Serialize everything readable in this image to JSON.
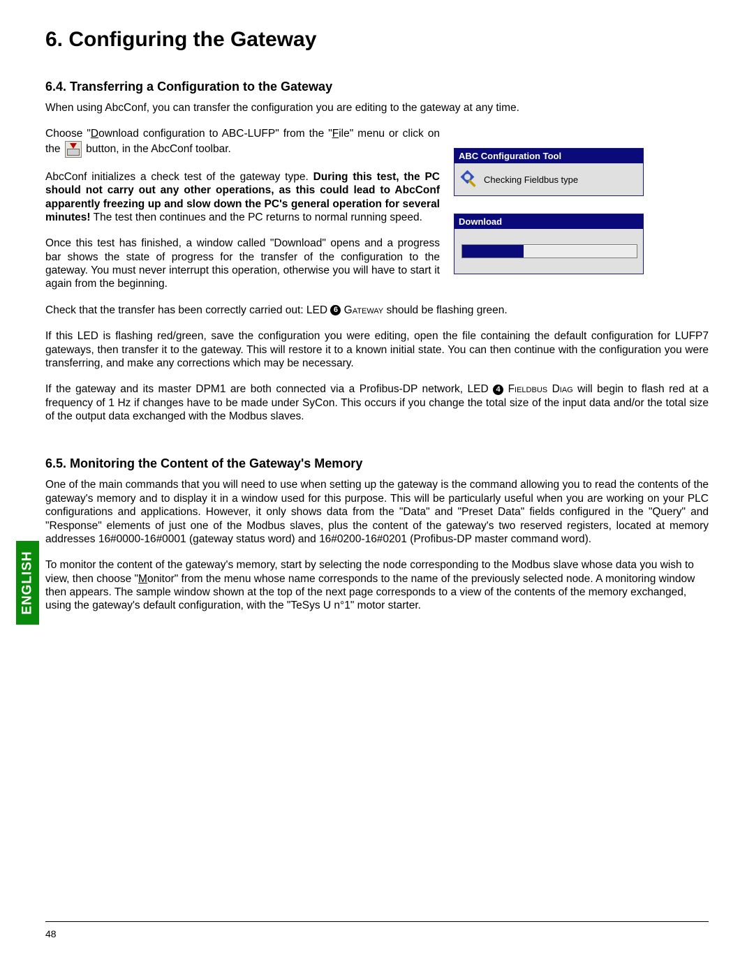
{
  "chapter_title": "6. Configuring the Gateway",
  "section_64_title": "6.4. Transferring a Configuration to the Gateway",
  "p1": "When using AbcConf, you can transfer the configuration you are editing to the gateway at any time.",
  "p2a": "Choose \"",
  "p2_underD": "D",
  "p2b": "ownload configuration to ABC-LUFP\" from the \"",
  "p2_underF": "F",
  "p2c": "ile\" menu or click on the ",
  "p2d": " button, in the AbcConf toolbar.",
  "p3a": "AbcConf initializes a check test of the gateway type. ",
  "p3_bold": "During this test, the PC should not carry out any other operations, as this could lead to AbcConf apparently freezing up and slow down the PC's general operation for several minutes!",
  "p3b": " The test then continues and the PC returns to normal running speed.",
  "p4": "Once this test has finished, a window called \"Download\" opens and a progress bar shows the state of progress for the transfer of the configuration to the gateway. You must never interrupt this operation, otherwise you will have to start it again from the beginning.",
  "win1_title": "ABC Configuration Tool",
  "win1_body": "Checking Fieldbus type",
  "win2_title": "Download",
  "progress_percent": 35,
  "p5a": "Check that the transfer has been correctly carried out: LED ",
  "led6": "6",
  "p5b_sc": " Gateway",
  "p5c": " should be flashing green.",
  "p6": "If this LED is flashing red/green, save the configuration you were editing, open the file containing the default configuration for LUFP7 gateways, then transfer it to the gateway. This will restore it to a known initial state. You can then continue with the configuration you were transferring, and make any corrections which may be necessary.",
  "p7a": "If the gateway and its master DPM1 are both connected via a Profibus-DP network, LED ",
  "led4": "4",
  "p7b_sc": " Fieldbus Diag",
  "p7c": " will begin to flash red at a frequency of 1 Hz if changes have to be made under SyCon. This occurs if you change the total size of the input data and/or the total size of the output data exchanged with the Modbus slaves.",
  "section_65_title": "6.5. Monitoring the Content of the Gateway's Memory",
  "p8": "One of the main commands that you will need to use when setting up the gateway is the command allowing you to read the contents of the gateway's memory and to display it in a window used for this purpose. This will be particularly useful when you are working on your PLC configurations and applications. However, it only shows data from the \"Data\" and \"Preset Data\" fields configured in the \"Query\" and \"Response\" elements of just one of the Modbus slaves, plus the content of the gateway's two reserved registers, located at memory addresses 16#0000-16#0001 (gateway status word) and 16#0200-16#0201 (Profibus-DP master command word).",
  "p9a": "To monitor the content of the gateway's memory, start by selecting the node corresponding to the Modbus slave whose data you wish to view, then choose \"",
  "p9_underM": "M",
  "p9b": "onitor\" from the menu whose name corresponds to the name of the previously selected node. A monitoring window then appears. The sample window shown at the top of the next page corresponds to a view of the contents of the memory exchanged, using the gateway's default configuration, with the \"TeSys U n°1\" motor starter.",
  "english_label": "ENGLISH",
  "page_number": "48",
  "colors": {
    "title_bar": "#0a0a7a",
    "win_bg": "#e0e0e0",
    "english_tab": "#0a8a0a",
    "text": "#000000",
    "page_bg": "#ffffff"
  }
}
